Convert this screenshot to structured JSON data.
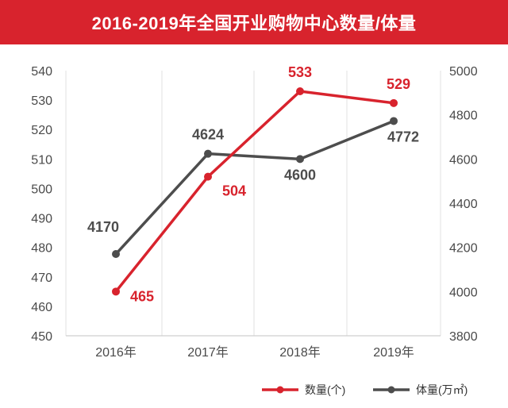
{
  "title": "2016-2019年全国开业购物中心数量/体量",
  "colors": {
    "title_bg": "#d8232d",
    "count_series": "#d8232d",
    "volume_series": "#4d4d4d",
    "gridline": "#e6e6e6",
    "axis_text": "#4a4a4a"
  },
  "chart_data": {
    "type": "line",
    "categories": [
      "2016年",
      "2017年",
      "2018年",
      "2019年"
    ],
    "y_left": {
      "ylim": [
        450,
        540
      ],
      "ticks": [
        450,
        460,
        470,
        480,
        490,
        500,
        510,
        520,
        530,
        540
      ]
    },
    "y_right": {
      "ylim": [
        3800,
        5000
      ],
      "ticks": [
        3800,
        4000,
        4200,
        4400,
        4600,
        4800,
        5000
      ]
    },
    "grid": "vertical",
    "legend_position": "bottom-right",
    "series": [
      {
        "name": "数量(个)",
        "axis": "left",
        "color": "#d8232d",
        "values": [
          465,
          504,
          533,
          529
        ]
      },
      {
        "name": "体量(万㎡)",
        "axis": "right",
        "color": "#4d4d4d",
        "values": [
          4170,
          4624,
          4600,
          4772
        ]
      }
    ]
  }
}
